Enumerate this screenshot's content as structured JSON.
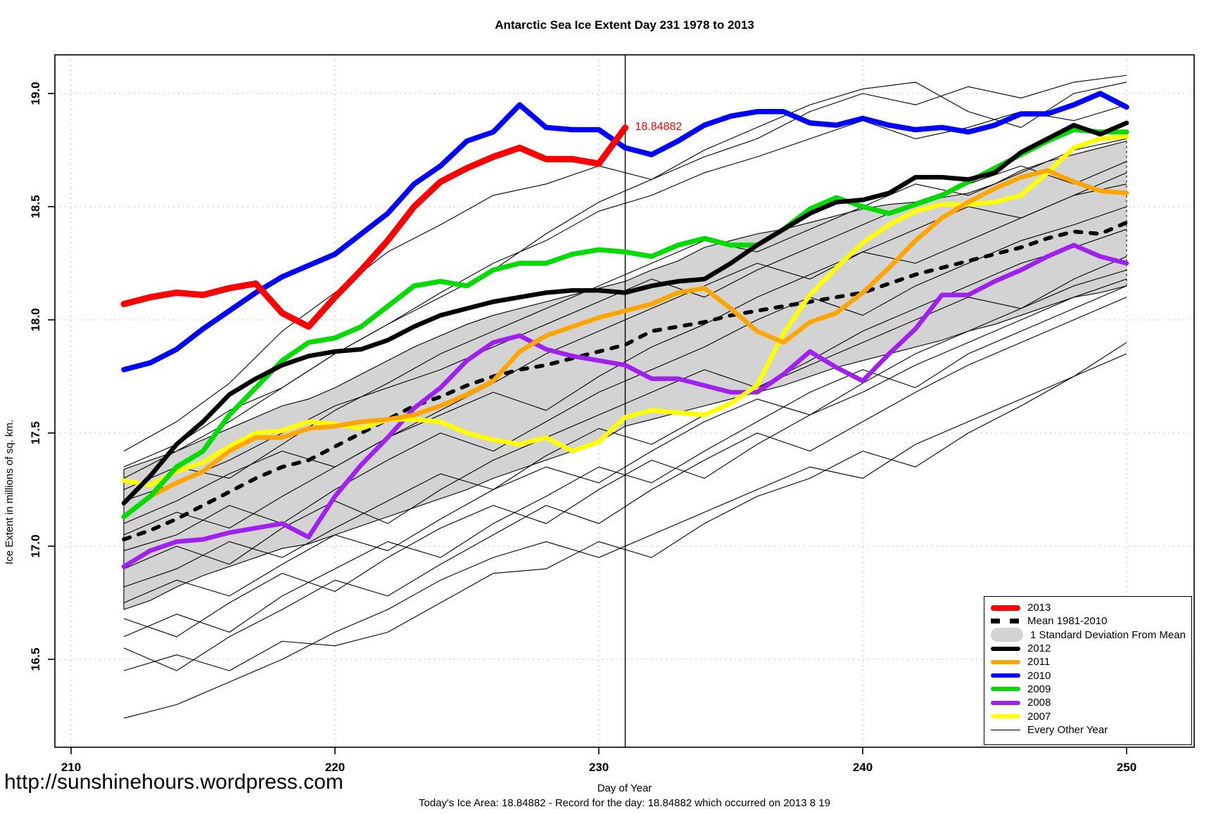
{
  "title": "Antarctic Sea Ice Extent Day 231 1978 to 2013",
  "annotation": {
    "label": "18.84882",
    "day": 231,
    "value": 18.84882,
    "color": "#FF0000"
  },
  "vertical_line_day": 231,
  "axes": {
    "x_label": "Day of Year",
    "y_label": "Ice Extent in millions of sq. km.",
    "x_tick_labels": [
      "210",
      "220",
      "230",
      "240",
      "250"
    ],
    "x_tick_values": [
      210,
      220,
      230,
      240,
      250
    ],
    "y_tick_labels": [
      "16.5",
      "17.0",
      "17.5",
      "18.0",
      "18.5",
      "19.0"
    ],
    "y_tick_values": [
      16.5,
      17.0,
      17.5,
      18.0,
      18.5,
      19.0
    ],
    "grid": "dotted-light-gray"
  },
  "legend": {
    "items": [
      {
        "label": "2013",
        "key": "2013"
      },
      {
        "label": "Mean 1981-2010",
        "key": "mean"
      },
      {
        "label": "1 Standard Deviation From Mean",
        "key": "band"
      },
      {
        "label": "2012",
        "key": "2012"
      },
      {
        "label": "2011",
        "key": "2011"
      },
      {
        "label": "2010",
        "key": "2010"
      },
      {
        "label": "2009",
        "key": "2009"
      },
      {
        "label": "2008",
        "key": "2008"
      },
      {
        "label": "2007",
        "key": "2007"
      },
      {
        "label": "Every Other Year",
        "key": "eo"
      }
    ]
  },
  "chart_data": {
    "type": "line",
    "title": "Antarctic Sea Ice Extent Day 231 1978 to 2013",
    "xlabel": "Day of Year",
    "ylabel": "Ice Extent in millions of sq. km.",
    "xlim": [
      209.4,
      252.6
    ],
    "ylim": [
      16.11,
      19.17
    ],
    "x_days": [
      212,
      213,
      214,
      215,
      216,
      217,
      218,
      219,
      220,
      221,
      222,
      223,
      224,
      225,
      226,
      227,
      228,
      229,
      230,
      231,
      232,
      233,
      234,
      235,
      236,
      237,
      238,
      239,
      240,
      241,
      242,
      243,
      244,
      245,
      246,
      247,
      248,
      249,
      250
    ],
    "series": [
      {
        "name": "2013",
        "color": "#FF0000",
        "width": 9,
        "start_day": 212,
        "end_day": 231,
        "values": [
          18.07,
          18.1,
          18.12,
          18.11,
          18.14,
          18.16,
          18.03,
          17.97,
          18.1,
          18.22,
          18.35,
          18.5,
          18.61,
          18.67,
          18.72,
          18.76,
          18.71,
          18.71,
          18.69,
          18.849
        ]
      },
      {
        "name": "Mean 1981-2010",
        "color": "#000000",
        "width": 5.5,
        "dash": "9 13",
        "start_day": 212,
        "end_day": 250,
        "values": [
          17.03,
          17.07,
          17.12,
          17.18,
          17.24,
          17.3,
          17.35,
          17.38,
          17.44,
          17.5,
          17.56,
          17.62,
          17.66,
          17.71,
          17.75,
          17.78,
          17.8,
          17.83,
          17.86,
          17.89,
          17.95,
          17.97,
          17.99,
          18.02,
          18.04,
          18.06,
          18.08,
          18.1,
          18.12,
          18.16,
          18.2,
          18.23,
          18.26,
          18.29,
          18.32,
          18.36,
          18.39,
          18.38,
          18.43
        ]
      },
      {
        "name": "2012",
        "color": "#000000",
        "width": 6.5,
        "start_day": 212,
        "end_day": 250,
        "values": [
          17.19,
          17.31,
          17.45,
          17.55,
          17.67,
          17.74,
          17.8,
          17.84,
          17.86,
          17.87,
          17.91,
          17.97,
          18.02,
          18.05,
          18.08,
          18.1,
          18.12,
          18.13,
          18.13,
          18.12,
          18.15,
          18.17,
          18.18,
          18.25,
          18.33,
          18.4,
          18.47,
          18.52,
          18.53,
          18.56,
          18.63,
          18.63,
          18.62,
          18.65,
          18.74,
          18.8,
          18.86,
          18.82,
          18.87
        ]
      },
      {
        "name": "2011",
        "color": "#FFA500",
        "width": 6.5,
        "start_day": 212,
        "end_day": 250,
        "values": [
          17.13,
          17.22,
          17.28,
          17.33,
          17.42,
          17.48,
          17.48,
          17.52,
          17.53,
          17.55,
          17.56,
          17.58,
          17.62,
          17.67,
          17.73,
          17.86,
          17.93,
          17.97,
          18.01,
          18.04,
          18.07,
          18.12,
          18.14,
          18.05,
          17.95,
          17.9,
          17.99,
          18.03,
          18.12,
          18.23,
          18.35,
          18.45,
          18.52,
          18.58,
          18.63,
          18.66,
          18.61,
          18.57,
          18.56
        ]
      },
      {
        "name": "2010",
        "color": "#0000FF",
        "width": 7.5,
        "start_day": 212,
        "end_day": 250,
        "values": [
          17.78,
          17.81,
          17.87,
          17.96,
          18.04,
          18.12,
          18.19,
          18.24,
          18.29,
          18.38,
          18.47,
          18.6,
          18.68,
          18.79,
          18.83,
          18.95,
          18.85,
          18.84,
          18.84,
          18.76,
          18.73,
          18.79,
          18.86,
          18.9,
          18.92,
          18.92,
          18.87,
          18.86,
          18.89,
          18.86,
          18.84,
          18.85,
          18.83,
          18.86,
          18.91,
          18.91,
          18.95,
          19.0,
          18.94
        ]
      },
      {
        "name": "2009",
        "color": "#00DC00",
        "width": 7,
        "start_day": 212,
        "end_day": 250,
        "values": [
          17.13,
          17.22,
          17.35,
          17.42,
          17.58,
          17.7,
          17.82,
          17.9,
          17.92,
          17.97,
          18.06,
          18.15,
          18.17,
          18.15,
          18.22,
          18.25,
          18.25,
          18.29,
          18.31,
          18.3,
          18.28,
          18.33,
          18.36,
          18.33,
          18.33,
          18.4,
          18.49,
          18.54,
          18.5,
          18.47,
          18.51,
          18.55,
          18.61,
          18.67,
          18.73,
          18.79,
          18.84,
          18.83,
          18.83
        ]
      },
      {
        "name": "2008",
        "color": "#A020F0",
        "width": 6.5,
        "start_day": 212,
        "end_day": 250,
        "values": [
          16.91,
          16.98,
          17.02,
          17.03,
          17.06,
          17.08,
          17.1,
          17.04,
          17.22,
          17.36,
          17.48,
          17.61,
          17.7,
          17.82,
          17.9,
          17.93,
          17.87,
          17.84,
          17.82,
          17.8,
          17.74,
          17.74,
          17.71,
          17.68,
          17.68,
          17.76,
          17.86,
          17.79,
          17.73,
          17.85,
          17.96,
          18.11,
          18.11,
          18.17,
          18.22,
          18.28,
          18.33,
          18.28,
          18.25
        ]
      },
      {
        "name": "2007",
        "color": "#FFFF00",
        "width": 6.5,
        "start_day": 212,
        "end_day": 250,
        "values": [
          17.29,
          17.27,
          17.33,
          17.37,
          17.44,
          17.5,
          17.51,
          17.55,
          17.54,
          17.52,
          17.56,
          17.56,
          17.55,
          17.5,
          17.47,
          17.45,
          17.48,
          17.42,
          17.46,
          17.57,
          17.6,
          17.59,
          17.58,
          17.63,
          17.71,
          17.94,
          18.11,
          18.23,
          18.34,
          18.42,
          18.48,
          18.51,
          18.51,
          18.52,
          18.55,
          18.65,
          18.76,
          18.8,
          18.81
        ]
      }
    ],
    "std_band": {
      "label": "1 Standard Deviation From Mean",
      "color": "#D3D3D3",
      "top": [
        17.34,
        17.38,
        17.42,
        17.47,
        17.52,
        17.57,
        17.62,
        17.65,
        17.7,
        17.76,
        17.82,
        17.88,
        17.93,
        17.98,
        18.02,
        18.05,
        18.08,
        18.11,
        18.14,
        18.17,
        18.22,
        18.26,
        18.32,
        18.35,
        18.38,
        18.4,
        18.43,
        18.46,
        18.49,
        18.51,
        18.52,
        18.54,
        18.56,
        18.6,
        18.66,
        18.7,
        18.73,
        18.76,
        18.79
      ],
      "bottom": [
        16.72,
        16.76,
        16.82,
        16.87,
        16.91,
        16.95,
        16.99,
        17.01,
        17.05,
        17.09,
        17.13,
        17.17,
        17.21,
        17.25,
        17.3,
        17.34,
        17.38,
        17.42,
        17.46,
        17.53,
        17.56,
        17.59,
        17.62,
        17.65,
        17.68,
        17.71,
        17.75,
        17.79,
        17.82,
        17.85,
        17.88,
        17.91,
        17.95,
        17.98,
        18.02,
        18.06,
        18.1,
        18.12,
        18.15
      ]
    },
    "every_other_year": {
      "label": "Every Other Year",
      "color": "#000000",
      "width": 1.1,
      "x_days": [
        212,
        214,
        216,
        218,
        220,
        222,
        224,
        226,
        228,
        230,
        232,
        234,
        236,
        238,
        240,
        242,
        244,
        246,
        248,
        250
      ],
      "lines": [
        [
          17.42,
          17.55,
          17.72,
          17.95,
          18.12,
          18.3,
          18.42,
          18.55,
          18.6,
          18.68,
          18.62,
          18.72,
          18.8,
          18.92,
          19.0,
          18.95,
          19.03,
          18.98,
          19.05,
          19.08
        ],
        [
          17.35,
          17.45,
          17.6,
          17.7,
          17.85,
          17.98,
          18.12,
          18.25,
          18.35,
          18.48,
          18.55,
          18.65,
          18.72,
          18.8,
          18.88,
          18.8,
          18.85,
          18.92,
          18.88,
          18.95
        ],
        [
          17.3,
          17.42,
          17.55,
          17.7,
          17.85,
          17.98,
          18.1,
          18.22,
          18.38,
          18.52,
          18.62,
          18.75,
          18.85,
          18.95,
          19.02,
          19.05,
          18.92,
          18.85,
          19.0,
          19.05
        ],
        [
          17.25,
          17.35,
          17.3,
          17.45,
          17.6,
          17.72,
          17.85,
          17.95,
          18.05,
          18.15,
          18.25,
          18.35,
          18.3,
          18.4,
          18.5,
          18.6,
          18.55,
          18.65,
          18.75,
          18.8
        ],
        [
          17.2,
          17.28,
          17.38,
          17.5,
          17.62,
          17.7,
          17.78,
          17.88,
          17.98,
          18.08,
          18.18,
          18.1,
          18.22,
          18.32,
          18.42,
          18.52,
          18.6,
          18.68,
          18.6,
          18.7
        ],
        [
          17.1,
          17.2,
          17.32,
          17.42,
          17.35,
          17.48,
          17.6,
          17.72,
          17.85,
          17.95,
          18.05,
          18.15,
          18.25,
          18.18,
          18.3,
          18.4,
          18.5,
          18.45,
          18.55,
          18.65
        ],
        [
          17.05,
          17.15,
          17.08,
          17.22,
          17.35,
          17.48,
          17.58,
          17.68,
          17.6,
          17.75,
          17.88,
          17.98,
          18.1,
          18.2,
          18.3,
          18.25,
          18.35,
          18.45,
          18.55,
          18.6
        ],
        [
          16.98,
          17.05,
          17.18,
          17.1,
          17.25,
          17.38,
          17.5,
          17.42,
          17.55,
          17.68,
          17.78,
          17.88,
          18.0,
          18.1,
          18.02,
          18.15,
          18.25,
          18.35,
          18.42,
          18.5
        ],
        [
          16.9,
          17.0,
          16.92,
          17.08,
          17.2,
          17.1,
          17.25,
          17.38,
          17.48,
          17.58,
          17.68,
          17.78,
          17.7,
          17.82,
          17.95,
          18.05,
          18.15,
          18.25,
          18.32,
          18.4
        ],
        [
          16.82,
          16.9,
          17.02,
          16.95,
          17.08,
          17.2,
          17.32,
          17.25,
          17.4,
          17.52,
          17.45,
          17.58,
          17.7,
          17.8,
          17.9,
          18.0,
          18.1,
          18.05,
          18.18,
          18.28
        ],
        [
          16.75,
          16.85,
          16.78,
          16.92,
          17.05,
          16.98,
          17.12,
          17.25,
          17.35,
          17.28,
          17.42,
          17.55,
          17.65,
          17.58,
          17.72,
          17.85,
          17.95,
          18.05,
          18.15,
          18.22
        ],
        [
          16.68,
          16.6,
          16.75,
          16.88,
          16.8,
          16.95,
          17.08,
          17.18,
          17.1,
          17.25,
          17.38,
          17.3,
          17.45,
          17.58,
          17.68,
          17.8,
          17.9,
          18.0,
          18.1,
          18.18
        ],
        [
          16.6,
          16.7,
          16.62,
          16.78,
          16.9,
          17.02,
          16.95,
          17.1,
          17.22,
          17.35,
          17.28,
          17.42,
          17.55,
          17.68,
          17.78,
          17.7,
          17.85,
          17.95,
          18.05,
          18.15
        ],
        [
          16.55,
          16.45,
          16.6,
          16.72,
          16.85,
          16.78,
          16.92,
          17.05,
          17.18,
          17.1,
          17.25,
          17.38,
          17.5,
          17.42,
          17.55,
          17.68,
          17.8,
          17.9,
          18.0,
          18.1
        ],
        [
          16.45,
          16.52,
          16.45,
          16.58,
          16.56,
          16.62,
          16.75,
          16.88,
          16.9,
          17.02,
          16.95,
          17.1,
          17.22,
          17.3,
          17.42,
          17.35,
          17.5,
          17.62,
          17.75,
          17.9
        ],
        [
          16.24,
          16.3,
          16.4,
          16.5,
          16.62,
          16.72,
          16.85,
          16.95,
          17.02,
          16.95,
          17.05,
          17.15,
          17.25,
          17.35,
          17.3,
          17.45,
          17.55,
          17.65,
          17.75,
          17.85
        ]
      ]
    }
  },
  "footer": {
    "site_url": "http://sunshinehours.wordpress.com",
    "status_line": "Today's Ice Area: 18.84882  - Record for the day: 18.84882 which occurred on 2013 8 19"
  }
}
